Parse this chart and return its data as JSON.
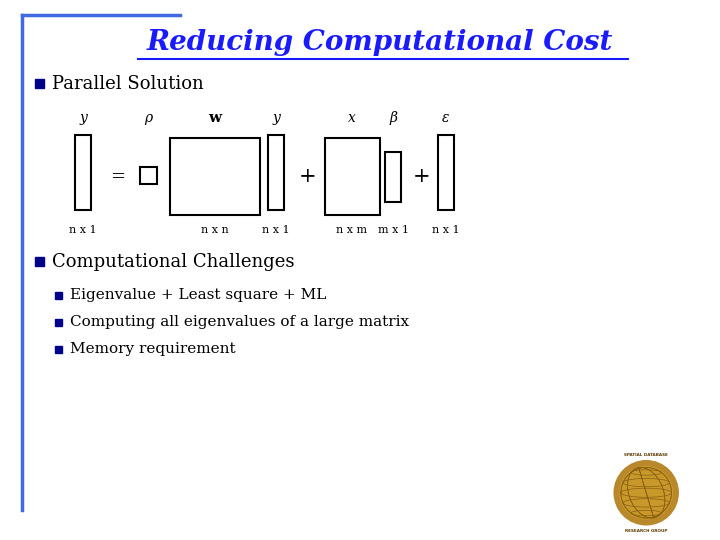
{
  "title": "Reducing Computational Cost",
  "title_color": "#1a1aff",
  "bg_color": "#ffffff",
  "bullet1": "Parallel Solution",
  "bullet2": "Computational Challenges",
  "sub_bullets": [
    "Eigenvalue + Least square + ML",
    "Computing all eigenvalues of a large matrix",
    "Memory requirement"
  ],
  "bullet_color": "#000000",
  "bullet_square_color": "#00008B",
  "border_color": "#4169E1",
  "diagram_labels_top": [
    "y",
    "ρ",
    "w",
    "y",
    "x",
    "β",
    "ε"
  ],
  "diagram_labels_bottom": [
    "n x 1",
    "n x n",
    "n x 1",
    "n x m",
    "m x 1",
    "n x 1"
  ]
}
